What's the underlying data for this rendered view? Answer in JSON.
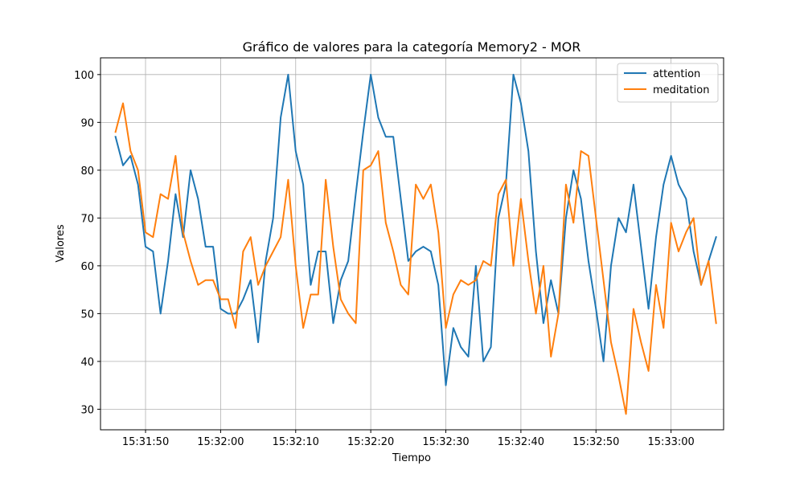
{
  "chart_data": {
    "type": "line",
    "title": "Gráfico de valores para la categoría Memory2 - MOR",
    "xlabel": "Tiempo",
    "ylabel": "Valores",
    "x_start": "15:31:46",
    "x_step_seconds": 1,
    "xlim": [
      "15:31:44",
      "15:33:07"
    ],
    "ylim": [
      25.7,
      103.5
    ],
    "x_ticks": [
      "15:31:50",
      "15:32:00",
      "15:32:10",
      "15:32:20",
      "15:32:30",
      "15:32:40",
      "15:32:50",
      "15:33:00"
    ],
    "y_ticks": [
      30,
      40,
      50,
      60,
      70,
      80,
      90,
      100
    ],
    "grid": true,
    "legend_position": "top-right",
    "series": [
      {
        "name": "attention",
        "color": "#1f77b4",
        "values": [
          87,
          81,
          83,
          77,
          64,
          63,
          50,
          61,
          75,
          66,
          80,
          74,
          64,
          64,
          51,
          50,
          50,
          53,
          57,
          44,
          61,
          70,
          91,
          100,
          84,
          77,
          56,
          63,
          63,
          48,
          57,
          61,
          75,
          88,
          100,
          91,
          87,
          87,
          74,
          61,
          63,
          64,
          63,
          56,
          35,
          47,
          43,
          41,
          60,
          40,
          43,
          70,
          77,
          100,
          94,
          84,
          63,
          48,
          57,
          50,
          70,
          80,
          74,
          61,
          51,
          40,
          60,
          70,
          67,
          77,
          64,
          51,
          66,
          77,
          83,
          77,
          74,
          63,
          56,
          61,
          66
        ]
      },
      {
        "name": "meditation",
        "color": "#ff7f0e",
        "values": [
          88,
          94,
          84,
          80,
          67,
          66,
          75,
          74,
          83,
          67,
          61,
          56,
          57,
          57,
          53,
          53,
          47,
          63,
          66,
          56,
          60,
          63,
          66,
          78,
          60,
          47,
          54,
          54,
          78,
          64,
          53,
          50,
          48,
          80,
          81,
          84,
          69,
          63,
          56,
          54,
          77,
          74,
          77,
          67,
          47,
          54,
          57,
          56,
          57,
          61,
          60,
          75,
          78,
          60,
          74,
          61,
          50,
          60,
          41,
          50,
          77,
          69,
          84,
          83,
          70,
          57,
          44,
          37,
          29,
          51,
          44,
          38,
          56,
          47,
          69,
          63,
          67,
          70,
          56,
          61,
          48
        ]
      }
    ]
  }
}
